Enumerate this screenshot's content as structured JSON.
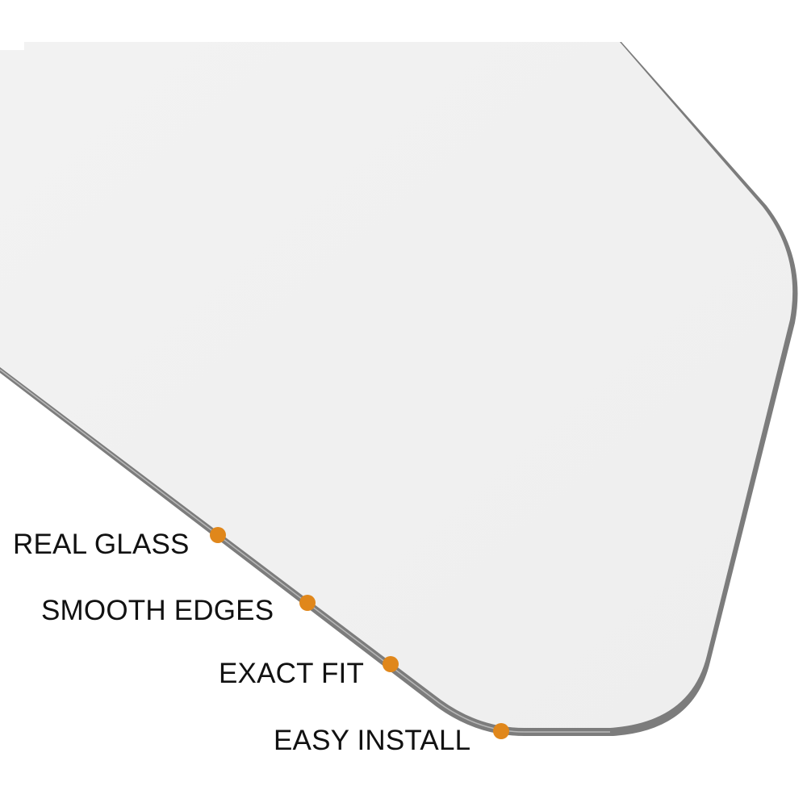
{
  "product": {
    "name_icon": "mirror-glass-image",
    "glass_color": "#efefef",
    "edge_color": "#8a8a8a"
  },
  "accent_color": "#e0871b",
  "features": [
    {
      "label": "REAL GLASS"
    },
    {
      "label": "SMOOTH EDGES"
    },
    {
      "label": "EXACT FIT"
    },
    {
      "label": "EASY INSTALL"
    }
  ]
}
